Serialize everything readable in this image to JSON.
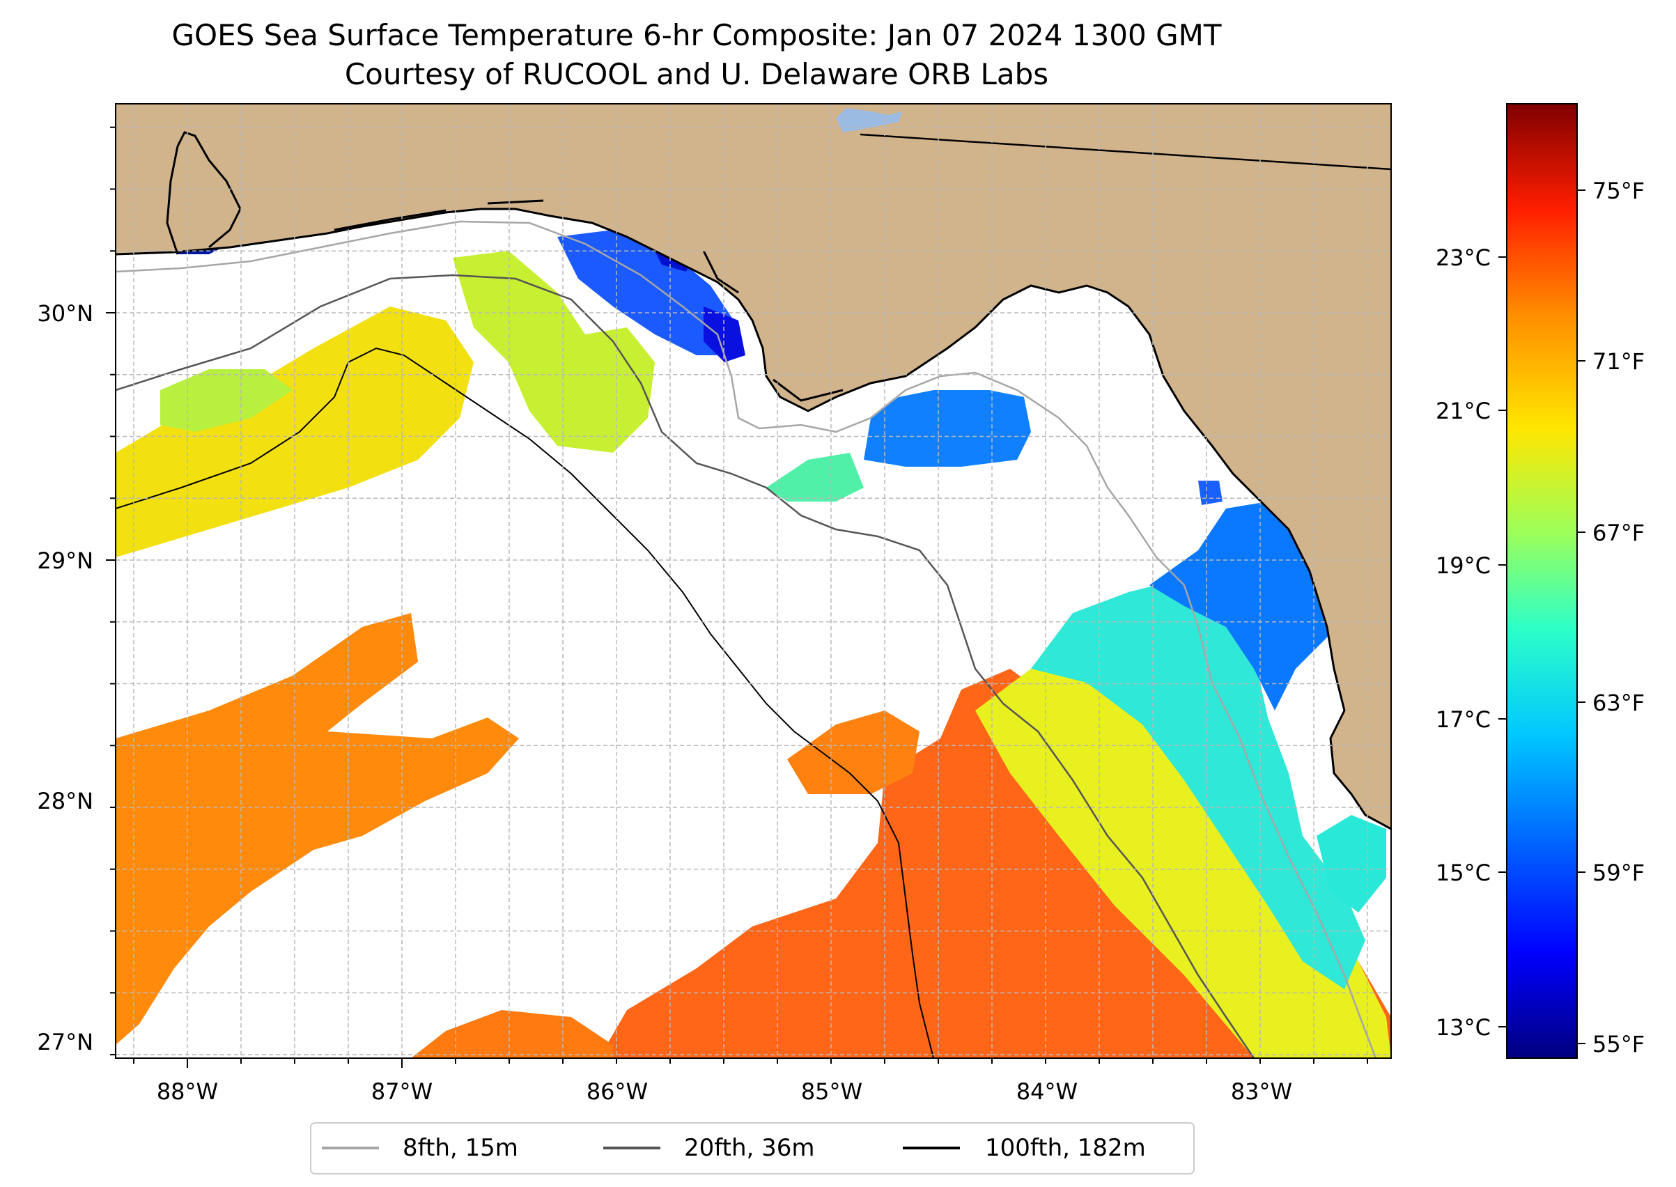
{
  "title": "GOES Sea Surface Temperature 6-hr Composite: Jan 07 2024 1300 GMT",
  "subtitle": "Courtesy of RUCOOL and U. Delaware ORB Labs",
  "map": {
    "lon_ticks": [
      "88°W",
      "87°W",
      "86°W",
      "85°W",
      "84°W",
      "83°W"
    ],
    "lat_ticks": [
      "30°N",
      "29°N",
      "28°N",
      "27°N"
    ],
    "colors": {
      "land": "#d2b48c",
      "no_data": "#ffffff",
      "grid": "#b0b0b0",
      "coast": "#000000",
      "isobath_15m": "#a6a6a6",
      "isobath_36m": "#555555",
      "isobath_182m": "#000000",
      "lake": "#9cbbe3"
    }
  },
  "colorbar": {
    "colormap": "jet",
    "celsius_ticks": [
      "23°C",
      "21°C",
      "19°C",
      "17°C",
      "15°C",
      "13°C"
    ],
    "fahrenheit_ticks": [
      "75°F",
      "71°F",
      "67°F",
      "63°F",
      "59°F",
      "55°F"
    ]
  },
  "legend": {
    "items": [
      {
        "label": "8fth, 15m",
        "color": "#a6a6a6"
      },
      {
        "label": "20fth, 36m",
        "color": "#555555"
      },
      {
        "label": "100fth, 182m",
        "color": "#000000"
      }
    ]
  }
}
